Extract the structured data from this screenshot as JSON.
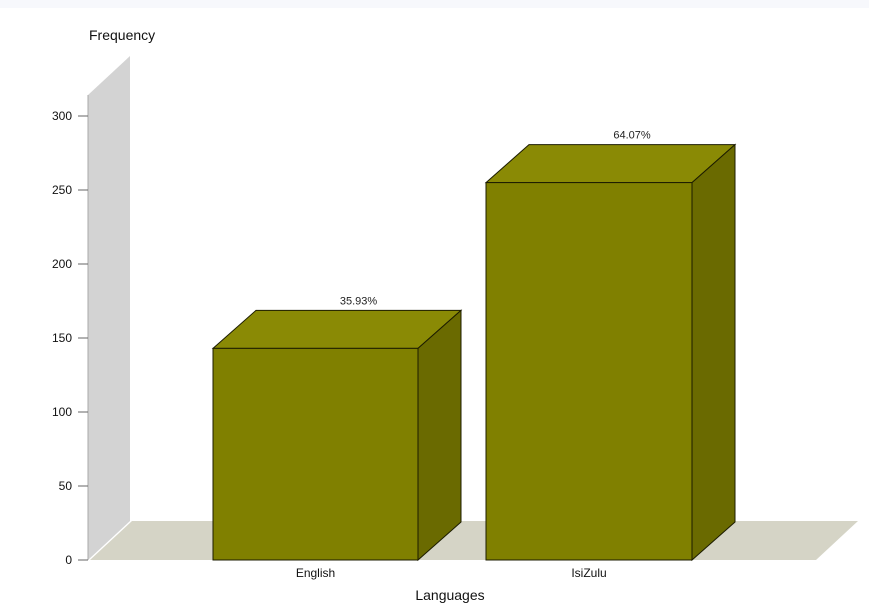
{
  "chart_data": {
    "type": "bar",
    "title": "",
    "xlabel": "Languages",
    "ylabel": "Frequency",
    "categories": [
      "English",
      "IsiZulu"
    ],
    "values": [
      143,
      255
    ],
    "data_labels": [
      "35.93%",
      "64.07%"
    ],
    "ylim": [
      0,
      300
    ],
    "yticks": [
      0,
      50,
      100,
      150,
      200,
      250,
      300
    ],
    "grid": false,
    "legend": "none",
    "style": "3d"
  },
  "colors": {
    "bar_front": "#808000",
    "bar_top": "#8a8a05",
    "bar_side": "#6a6a00",
    "wall": "#d3d3d3",
    "floor": "#d5d4c6"
  }
}
